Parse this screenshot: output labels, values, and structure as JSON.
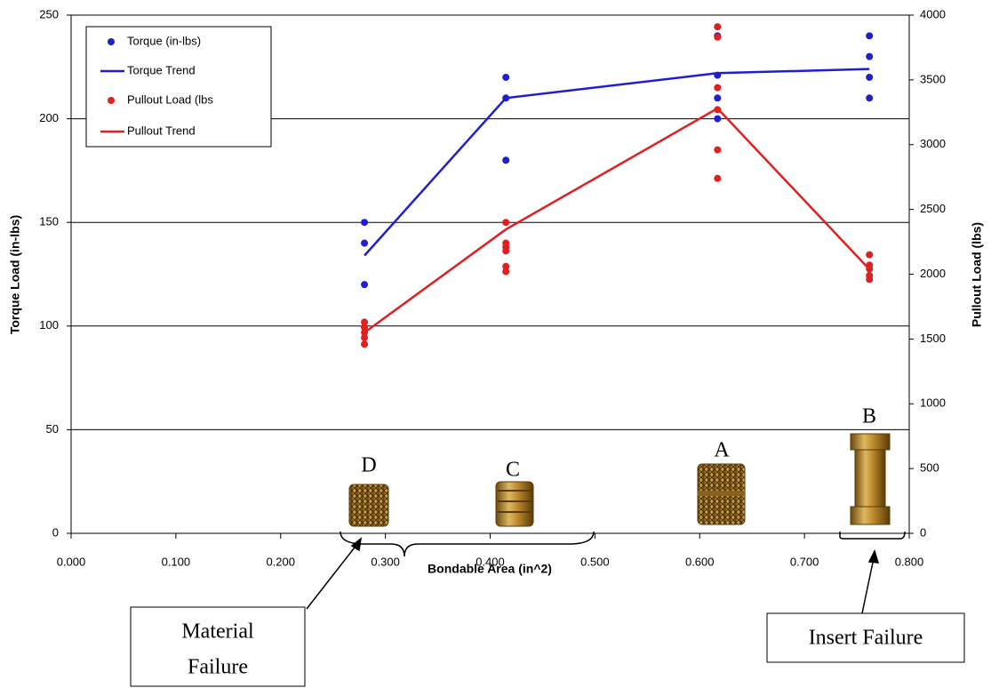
{
  "chart_data": {
    "type": "scatter",
    "x_label": "Bondable Area (in^2)",
    "y_label": "Torque Load (in-lbs)",
    "y2_label": "Pullout Load (lbs)",
    "y_label_color": "#1a1ab8",
    "y2_label_color": "#d42020",
    "xlim": [
      0,
      0.8
    ],
    "xticks": [
      {
        "value": 0,
        "label": "0.000"
      },
      {
        "value": 0.1,
        "label": "0.100"
      },
      {
        "value": 0.2,
        "label": "0.200"
      },
      {
        "value": 0.3,
        "label": "0.300"
      },
      {
        "value": 0.4,
        "label": "0.400"
      },
      {
        "value": 0.5,
        "label": "0.500"
      },
      {
        "value": 0.6,
        "label": "0.600"
      },
      {
        "value": 0.7,
        "label": "0.700"
      },
      {
        "value": 0.8,
        "label": "0.800"
      }
    ],
    "ylim": [
      0,
      250
    ],
    "yticks": [
      0,
      50,
      100,
      150,
      200,
      250
    ],
    "y2lim": [
      0,
      4000
    ],
    "y2ticks": [
      0,
      500,
      1000,
      1500,
      2000,
      2500,
      3000,
      3500,
      4000
    ],
    "grid": true,
    "legend": "upper left",
    "series": [
      {
        "name": "Torque (in-lbs)",
        "style": "markers",
        "color": "#1f1fd0",
        "x": [
          0.28,
          0.28,
          0.28,
          0.415,
          0.415,
          0.415,
          0.617,
          0.617,
          0.617,
          0.617,
          0.762,
          0.762,
          0.762,
          0.762
        ],
        "values": [
          150,
          140,
          120,
          220,
          210,
          180,
          240,
          221,
          210,
          200,
          240,
          230,
          220,
          210
        ]
      },
      {
        "name": "Torque Trend",
        "style": "line",
        "color": "#1f1fd0",
        "x": [
          0.28,
          0.415,
          0.617,
          0.762
        ],
        "values": [
          134,
          210,
          222,
          224
        ]
      },
      {
        "name": "Pullout Load (lbs",
        "style": "markers",
        "color": "#e02020",
        "axis": "y2",
        "x": [
          0.28,
          0.28,
          0.28,
          0.28,
          0.28,
          0.415,
          0.415,
          0.415,
          0.415,
          0.415,
          0.415,
          0.617,
          0.617,
          0.617,
          0.617,
          0.617,
          0.617,
          0.762,
          0.762,
          0.762,
          0.762,
          0.762
        ],
        "values": [
          1630,
          1590,
          1550,
          1510,
          1460,
          2400,
          2240,
          2210,
          2180,
          2060,
          2020,
          3910,
          3830,
          3440,
          3270,
          2960,
          2740,
          2150,
          2070,
          2040,
          1990,
          1960
        ]
      },
      {
        "name": "Pullout Trend",
        "style": "line",
        "color": "#e02020",
        "axis": "y2",
        "x": [
          0.28,
          0.415,
          0.617,
          0.762
        ],
        "values": [
          1550,
          2346,
          3280,
          2038
        ]
      }
    ],
    "annotations": [
      "D",
      "C",
      "A",
      "B"
    ],
    "callouts": [
      [
        "Material",
        "Failure"
      ],
      [
        "Insert Failure"
      ]
    ]
  }
}
